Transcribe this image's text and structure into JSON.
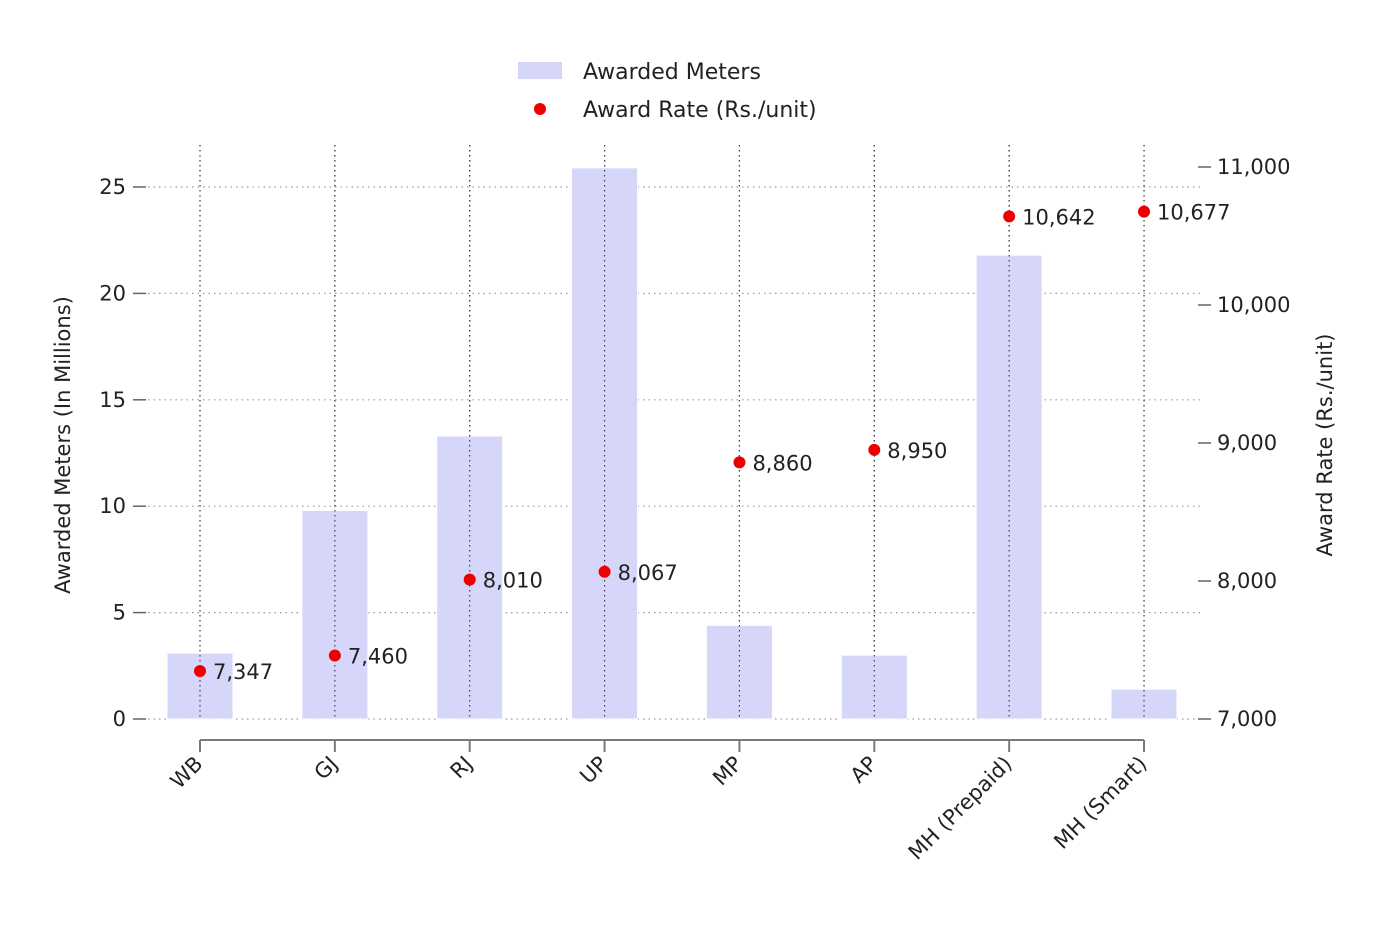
{
  "chart_data": {
    "type": "bar",
    "categories": [
      "WB",
      "GJ",
      "RJ",
      "UP",
      "MP",
      "AP",
      "MH (Prepaid)",
      "MH (Smart)"
    ],
    "series": [
      {
        "name": "Awarded Meters",
        "kind": "bar",
        "axis": "left",
        "color": "#d6d6fa",
        "values": [
          3.1,
          9.8,
          13.3,
          25.9,
          4.4,
          3.0,
          21.8,
          1.4
        ]
      },
      {
        "name": "Award Rate (Rs./unit)",
        "kind": "scatter",
        "axis": "right",
        "color": "#ee0000",
        "values": [
          7347,
          7460,
          8010,
          8067,
          8860,
          8950,
          10642,
          10677
        ],
        "labels": [
          "7,347",
          "7,460",
          "8,010",
          "8,067",
          "8,860",
          "8,950",
          "10,642",
          "10,677"
        ]
      }
    ],
    "ylabel": "Awarded Meters (In Millions)",
    "y2label": "Award Rate (Rs./unit)",
    "ylim": [
      0,
      25.94
    ],
    "y2lim": [
      7000,
      11000
    ],
    "yticks": [
      0,
      5,
      10,
      15,
      20,
      25
    ],
    "yticklabels": [
      "0",
      "5",
      "10",
      "15",
      "20",
      "25"
    ],
    "y2ticks": [
      7000,
      8000,
      9000,
      10000,
      11000
    ],
    "y2ticklabels": [
      "7,000",
      "8,000",
      "9,000",
      "10,000",
      "11,000"
    ],
    "grid": true,
    "legend_position": "top-center"
  }
}
